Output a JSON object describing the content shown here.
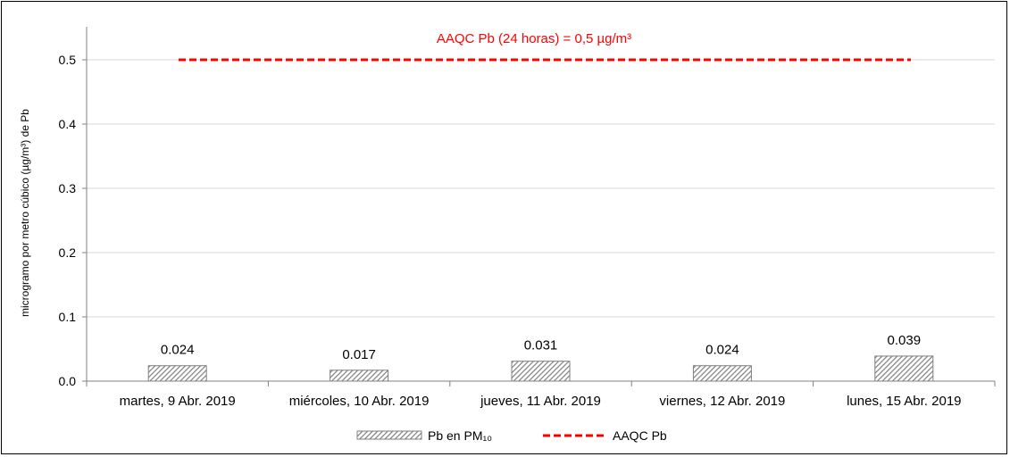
{
  "chart_data": {
    "type": "bar",
    "title": "",
    "xlabel": "",
    "ylabel": "microgramo por metro cúbico (µg/m³) de Pb",
    "ylim": [
      0,
      0.55
    ],
    "yticks": [
      "0.0",
      "0.1",
      "0.2",
      "0.3",
      "0.4",
      "0.5"
    ],
    "ytick_values": [
      0,
      0.1,
      0.2,
      0.3,
      0.4,
      0.5
    ],
    "grid": true,
    "categories": [
      "martes, 9 Abr. 2019",
      "miércoles, 10 Abr. 2019",
      "jueves, 11 Abr. 2019",
      "viernes, 12 Abr. 2019",
      "lunes, 15 Abr. 2019"
    ],
    "series": [
      {
        "name": "Pb en PM₁₀",
        "values": [
          0.024,
          0.017,
          0.031,
          0.024,
          0.039
        ],
        "labels": [
          "0.024",
          "0.017",
          "0.031",
          "0.024",
          "0.039"
        ],
        "style": "hatched",
        "color": "#7f7f7f"
      }
    ],
    "reference_line": {
      "name": "AAQC Pb",
      "value": 0.5,
      "label": "AAQC Pb (24 horas) = 0,5 µg/m³",
      "color": "#ff0000",
      "style": "dashed"
    },
    "legend_position": "bottom"
  }
}
